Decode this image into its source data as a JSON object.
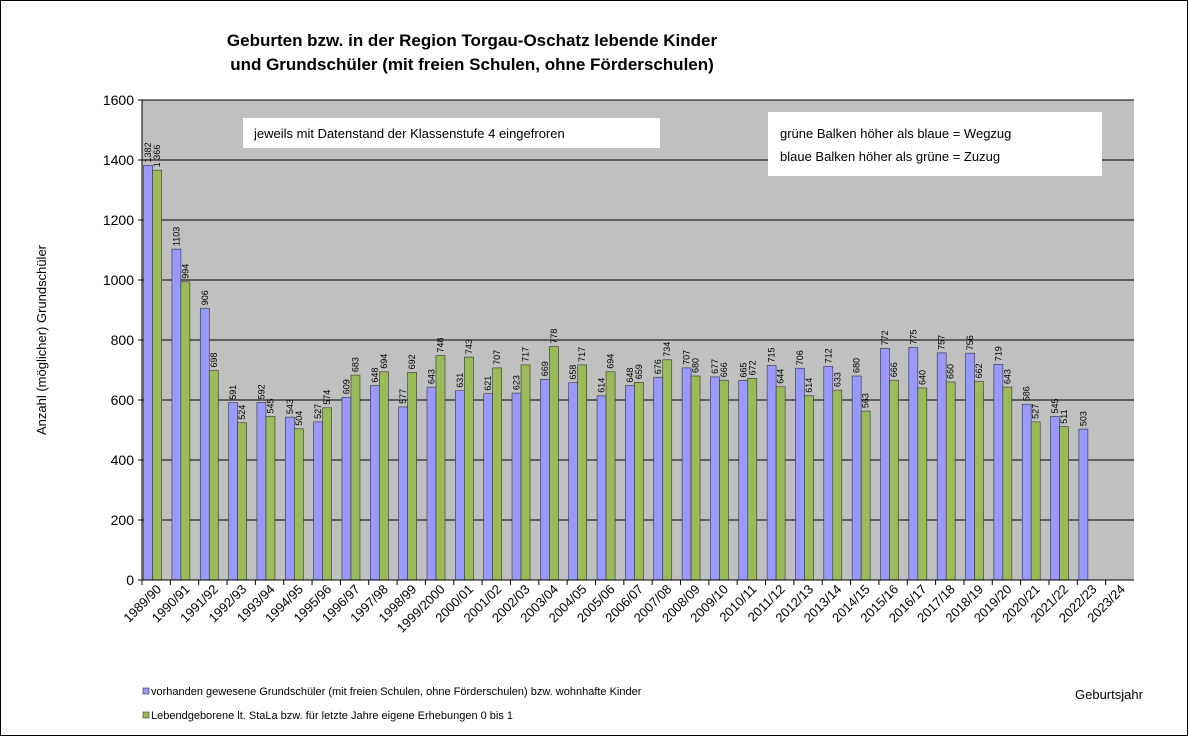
{
  "chart_data": {
    "type": "bar",
    "title": [
      "Geburten bzw. in der Region Torgau-Oschatz lebende Kinder",
      "und Grundschüler (mit freien Schulen, ohne Förderschulen)"
    ],
    "y_label": "Anzahl (möglicher) Grundschüler",
    "x_label": "Geburtsjahr",
    "annotations": [
      "jeweils mit Datenstand der Klassenstufe 4 eingefroren",
      [
        "grüne Balken höher als blaue = Wegzug",
        "blaue Balken höher als grüne = Zuzug"
      ]
    ],
    "categories": [
      "1989/90",
      "1990/91",
      "1991/92",
      "1992/93",
      "1993/94",
      "1994/95",
      "1995/96",
      "1996/97",
      "1997/98",
      "1998/99",
      "1999/2000",
      "2000/01",
      "2001/02",
      "2002/03",
      "2003/04",
      "2004/05",
      "2005/06",
      "2006/07",
      "2007/08",
      "2008/09",
      "2009/10",
      "2010/11",
      "2011/12",
      "2012/13",
      "2013/14",
      "2014/15",
      "2015/16",
      "2016/17",
      "2017/18",
      "2018/19",
      "2019/20",
      "2020/21",
      "2021/22",
      "2022/23",
      "2023/24"
    ],
    "series": [
      {
        "name": "vorhanden gewesene Grundschüler (mit freien Schulen, ohne Förderschulen) bzw. wohnhafte Kinder",
        "color": "#9999ff",
        "values": [
          1382,
          1103,
          906,
          591,
          592,
          543,
          527,
          609,
          648,
          577,
          643,
          631,
          621,
          623,
          669,
          658,
          614,
          648,
          676,
          707,
          677,
          665,
          715,
          706,
          712,
          680,
          772,
          775,
          757,
          756,
          719,
          586,
          545,
          503,
          null
        ]
      },
      {
        "name": "Lebendgeborene lt. StaLa bzw. für letzte Jahre eigene Erhebungen 0 bis 1",
        "color": "#9bbb59",
        "values": [
          1366,
          994,
          698,
          524,
          545,
          504,
          574,
          683,
          694,
          692,
          748,
          743,
          707,
          717,
          778,
          717,
          694,
          659,
          734,
          680,
          666,
          672,
          644,
          614,
          633,
          563,
          666,
          640,
          660,
          662,
          643,
          527,
          511,
          null,
          null
        ],
        "value_labels": [
          "1 366",
          "994",
          "698",
          "524",
          "545",
          "504",
          "574",
          "683",
          "694",
          "692",
          "748",
          "743",
          "707",
          "717",
          "778",
          "717",
          "694",
          "659",
          "734",
          "680",
          "666",
          "672",
          "644",
          "614",
          "633",
          "563",
          "666",
          "640",
          "660",
          "662",
          "643",
          "527",
          "511",
          null,
          null
        ]
      }
    ],
    "ylim": [
      0,
      1600
    ],
    "yticks": [
      0,
      200,
      400,
      600,
      800,
      1000,
      1200,
      1400,
      1600
    ],
    "grid": true,
    "plot_background": "#c0c0c0",
    "legend": "bottom-left"
  }
}
